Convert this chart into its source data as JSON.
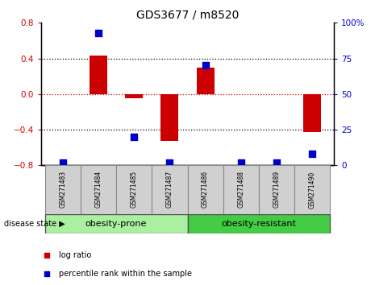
{
  "title": "GDS3677 / m8520",
  "samples": [
    "GSM271483",
    "GSM271484",
    "GSM271485",
    "GSM271487",
    "GSM271486",
    "GSM271488",
    "GSM271489",
    "GSM271490"
  ],
  "log_ratio": [
    0.0,
    0.43,
    -0.05,
    -0.53,
    0.3,
    0.0,
    0.0,
    -0.43
  ],
  "percentile": [
    2.0,
    93.0,
    20.0,
    2.0,
    70.0,
    2.0,
    2.0,
    8.0
  ],
  "ylim_left": [
    -0.8,
    0.8
  ],
  "ylim_right": [
    0,
    100
  ],
  "yticks_left": [
    -0.8,
    -0.4,
    0.0,
    0.4,
    0.8
  ],
  "yticks_right": [
    0,
    25,
    50,
    75,
    100
  ],
  "group1_label": "obesity-prone",
  "group2_label": "obesity-resistant",
  "group1_indices": [
    0,
    1,
    2,
    3
  ],
  "group2_indices": [
    4,
    5,
    6,
    7
  ],
  "group1_color": "#aaf0a0",
  "group2_color": "#44cc44",
  "sample_box_color": "#d0d0d0",
  "bar_color": "#cc0000",
  "dot_color": "#0000cc",
  "legend_log_ratio": "log ratio",
  "legend_percentile": "percentile rank within the sample",
  "disease_state_label": "disease state",
  "bar_width": 0.5,
  "dot_size": 35,
  "title_fontsize": 10,
  "tick_fontsize": 7.5,
  "sample_fontsize": 5.5,
  "group_fontsize": 8,
  "legend_fontsize": 7
}
